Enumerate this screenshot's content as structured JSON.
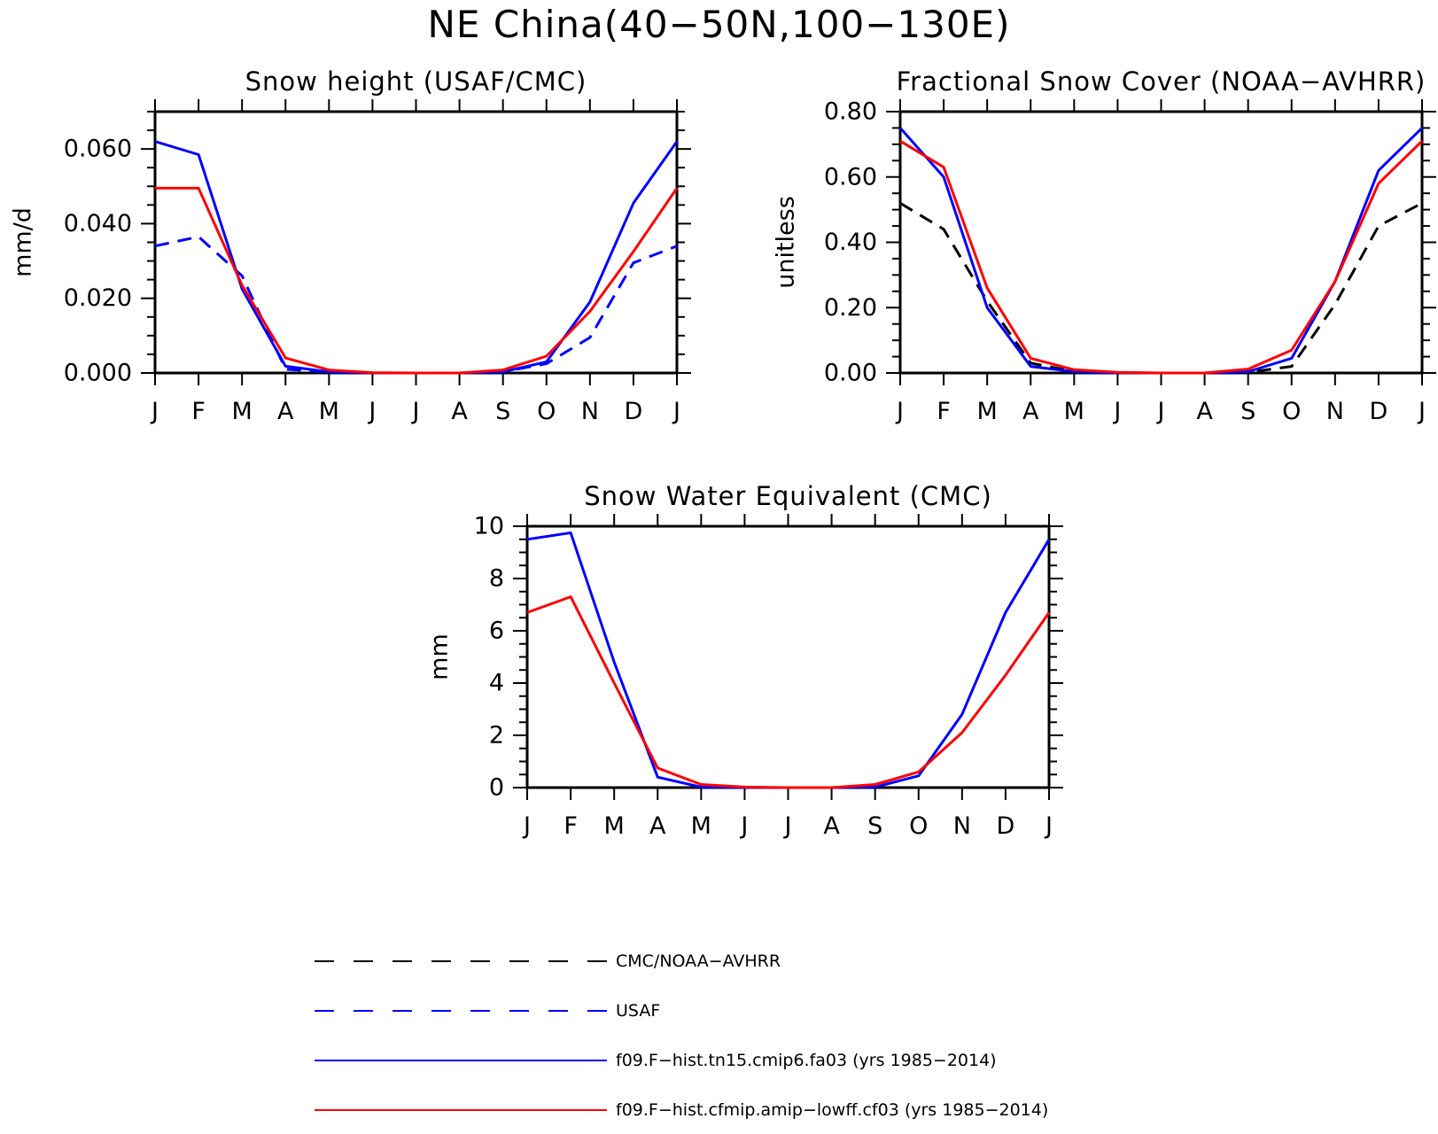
{
  "title": "NE China(40−50N,100−130E)",
  "colors": {
    "obs": "#000000",
    "usaf": "#0000ff",
    "tn15": "#0000ff",
    "cf03": "#ff0000"
  },
  "legend": [
    {
      "key": "obs",
      "label": "CMC/NOAA−AVHRR",
      "color": "#000000",
      "dash": true
    },
    {
      "key": "usaf",
      "label": "USAF",
      "color": "#0000ff",
      "dash": true
    },
    {
      "key": "tn15",
      "label": "f09.F−hist.tn15.cmip6.fa03 (yrs 1985−2014)",
      "color": "#0000ff",
      "dash": false
    },
    {
      "key": "cf03",
      "label": "f09.F−hist.cfmip.amip−lowff.cf03 (yrs 1985−2014)",
      "color": "#ff0000",
      "dash": false
    }
  ],
  "chart_data": [
    {
      "id": "snow-height",
      "type": "line",
      "title": "Snow height (USAF/CMC)",
      "xlabel": "",
      "ylabel": "mm/d",
      "categories": [
        "J",
        "F",
        "M",
        "A",
        "M",
        "J",
        "J",
        "A",
        "S",
        "O",
        "N",
        "D",
        "J"
      ],
      "ylim": [
        0,
        0.07
      ],
      "yticks": [
        "0.000",
        "0.020",
        "0.040",
        "0.060"
      ],
      "ytick_values": [
        0,
        0.02,
        0.04,
        0.06
      ],
      "series": [
        {
          "key": "obs",
          "color": "#000000",
          "dash": true,
          "values": [
            0,
            0,
            0,
            0,
            0,
            0,
            0,
            0,
            0,
            0,
            0,
            0,
            0
          ]
        },
        {
          "key": "usaf",
          "color": "#0000ff",
          "dash": true,
          "values": [
            0.034,
            0.0365,
            0.026,
            0.001,
            0.0003,
            0,
            0,
            0,
            0.0003,
            0.0025,
            0.0095,
            0.0295,
            0.034
          ]
        },
        {
          "key": "tn15",
          "color": "#0000ff",
          "dash": false,
          "values": [
            0.062,
            0.0585,
            0.0225,
            0.0018,
            0.0003,
            0,
            0,
            0,
            0.0003,
            0.003,
            0.019,
            0.0455,
            0.062
          ]
        },
        {
          "key": "cf03",
          "color": "#ff0000",
          "dash": false,
          "values": [
            0.0495,
            0.0495,
            0.0235,
            0.004,
            0.0008,
            0.0001,
            0,
            0,
            0.0008,
            0.0045,
            0.0165,
            0.0325,
            0.0495
          ]
        }
      ]
    },
    {
      "id": "snow-cover",
      "type": "line",
      "title": "Fractional Snow Cover (NOAA−AVHRR)",
      "xlabel": "",
      "ylabel": "unitless",
      "categories": [
        "J",
        "F",
        "M",
        "A",
        "M",
        "J",
        "J",
        "A",
        "S",
        "O",
        "N",
        "D",
        "J"
      ],
      "ylim": [
        0,
        0.8
      ],
      "yticks": [
        "0.00",
        "0.20",
        "0.40",
        "0.60",
        "0.80"
      ],
      "ytick_values": [
        0,
        0.2,
        0.4,
        0.6,
        0.8
      ],
      "series": [
        {
          "key": "obs",
          "color": "#000000",
          "dash": true,
          "values": [
            0.52,
            0.44,
            0.22,
            0.03,
            0.005,
            0,
            0,
            0,
            0.002,
            0.02,
            0.21,
            0.45,
            0.52
          ]
        },
        {
          "key": "tn15",
          "color": "#0000ff",
          "dash": false,
          "values": [
            0.75,
            0.6,
            0.2,
            0.02,
            0.004,
            0,
            0,
            0,
            0.004,
            0.045,
            0.28,
            0.62,
            0.75
          ]
        },
        {
          "key": "cf03",
          "color": "#ff0000",
          "dash": false,
          "values": [
            0.71,
            0.63,
            0.26,
            0.045,
            0.01,
            0.002,
            0,
            0,
            0.012,
            0.07,
            0.28,
            0.58,
            0.71
          ]
        }
      ]
    },
    {
      "id": "swe",
      "type": "line",
      "title": "Snow Water Equivalent (CMC)",
      "xlabel": "",
      "ylabel": "mm",
      "categories": [
        "J",
        "F",
        "M",
        "A",
        "M",
        "J",
        "J",
        "A",
        "S",
        "O",
        "N",
        "D",
        "J"
      ],
      "ylim": [
        0,
        10
      ],
      "yticks": [
        "0",
        "2",
        "4",
        "6",
        "8",
        "10"
      ],
      "ytick_values": [
        0,
        2,
        4,
        6,
        8,
        10
      ],
      "series": [
        {
          "key": "obs",
          "color": "#000000",
          "dash": true,
          "values": [
            0,
            0,
            0,
            0,
            0,
            0,
            0,
            0,
            0,
            0,
            0,
            0,
            0
          ]
        },
        {
          "key": "tn15",
          "color": "#0000ff",
          "dash": false,
          "values": [
            9.5,
            9.75,
            4.8,
            0.4,
            0.02,
            0,
            0,
            0,
            0.02,
            0.45,
            2.8,
            6.7,
            9.5
          ]
        },
        {
          "key": "cf03",
          "color": "#ff0000",
          "dash": false,
          "values": [
            6.7,
            7.3,
            4.0,
            0.75,
            0.12,
            0.02,
            0,
            0,
            0.12,
            0.6,
            2.1,
            4.3,
            6.7
          ]
        }
      ]
    }
  ]
}
